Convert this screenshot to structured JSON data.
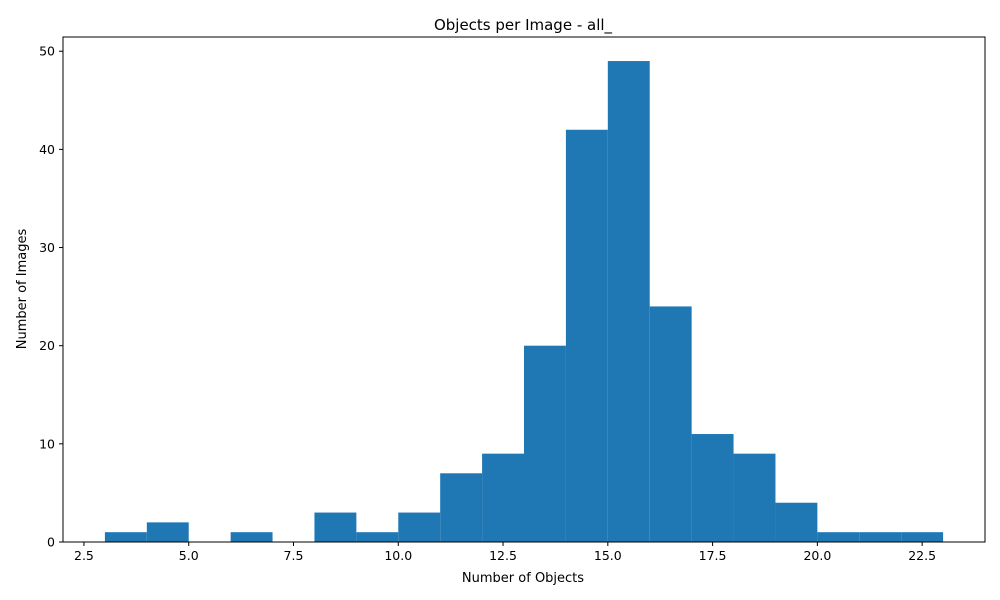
{
  "chart_data": {
    "type": "bar",
    "title": "Objects per Image - all_",
    "xlabel": "Number of Objects",
    "ylabel": "Number of Images",
    "bin_edges": [
      3,
      4,
      5,
      6,
      7,
      8,
      9,
      10,
      11,
      12,
      13,
      14,
      15,
      16,
      17,
      18,
      19,
      20,
      21,
      22,
      23
    ],
    "values": [
      1,
      2,
      0,
      1,
      0,
      3,
      1,
      3,
      7,
      9,
      20,
      42,
      49,
      24,
      11,
      9,
      4,
      1,
      1,
      1
    ],
    "xlim": [
      2.0,
      24.0
    ],
    "ylim": [
      0,
      51.45
    ],
    "xticks": [
      2.5,
      5.0,
      7.5,
      10.0,
      12.5,
      15.0,
      17.5,
      20.0,
      22.5
    ],
    "xtick_labels": [
      "2.5",
      "5.0",
      "7.5",
      "10.0",
      "12.5",
      "15.0",
      "17.5",
      "20.0",
      "22.5"
    ],
    "yticks": [
      0,
      10,
      20,
      30,
      40,
      50
    ],
    "ytick_labels": [
      "0",
      "10",
      "20",
      "30",
      "40",
      "50"
    ],
    "bar_color": "#1f77b4",
    "grid": false,
    "legend": "none"
  }
}
